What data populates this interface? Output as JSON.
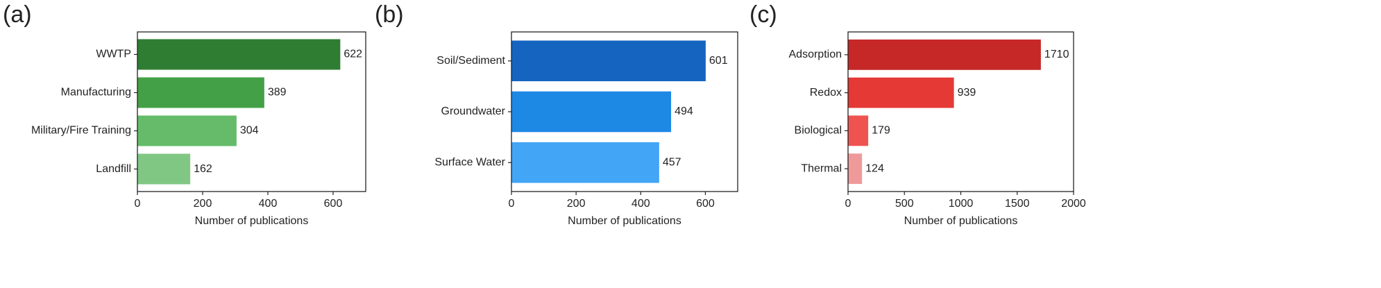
{
  "chart_data": [
    {
      "type": "bar",
      "orientation": "horizontal",
      "panel_label": "(a)",
      "categories": [
        "WWTP",
        "Manufacturing",
        "Military/Fire Training",
        "Landfill"
      ],
      "values": [
        622,
        389,
        304,
        162
      ],
      "value_labels": [
        "622",
        "389",
        "304",
        "162"
      ],
      "colors": [
        "#2e7d32",
        "#43a047",
        "#66bb6a",
        "#81c784"
      ],
      "xlabel": "Number of publications",
      "xlim": [
        0,
        700
      ],
      "xticks": [
        0,
        200,
        400,
        600
      ],
      "xtick_labels": [
        "0",
        "200",
        "400",
        "600"
      ]
    },
    {
      "type": "bar",
      "orientation": "horizontal",
      "panel_label": "(b)",
      "categories": [
        "Soil/Sediment",
        "Groundwater",
        "Surface Water"
      ],
      "values": [
        601,
        494,
        457
      ],
      "value_labels": [
        "601",
        "494",
        "457"
      ],
      "colors": [
        "#1565c0",
        "#1e88e5",
        "#42a5f5"
      ],
      "xlabel": "Number of publications",
      "xlim": [
        0,
        700
      ],
      "xticks": [
        0,
        200,
        400,
        600
      ],
      "xtick_labels": [
        "0",
        "200",
        "400",
        "600"
      ]
    },
    {
      "type": "bar",
      "orientation": "horizontal",
      "panel_label": "(c)",
      "categories": [
        "Adsorption",
        "Redox",
        "Biological",
        "Thermal"
      ],
      "values": [
        1710,
        939,
        179,
        124
      ],
      "value_labels": [
        "1710",
        "939",
        "179",
        "124"
      ],
      "colors": [
        "#c62828",
        "#e53935",
        "#ef5350",
        "#ef9a9a"
      ],
      "xlabel": "Number of publications",
      "xlim": [
        0,
        2000
      ],
      "xticks": [
        0,
        500,
        1000,
        1500,
        2000
      ],
      "xtick_labels": [
        "0",
        "500",
        "1000",
        "1500",
        "2000"
      ]
    }
  ]
}
